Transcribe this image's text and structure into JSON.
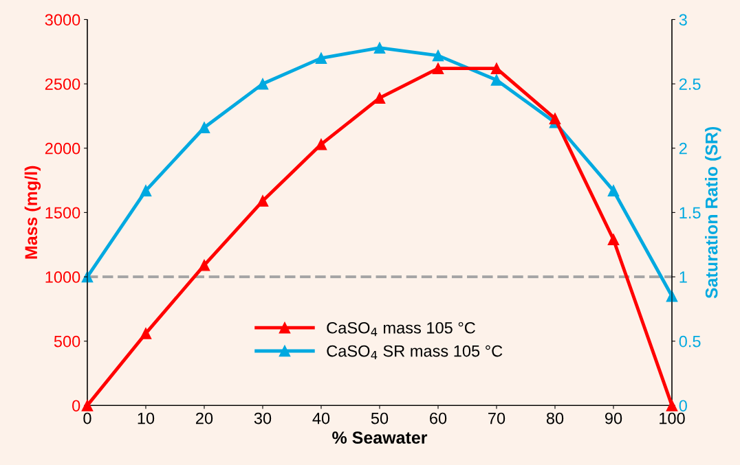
{
  "chart_data": {
    "type": "line",
    "xlabel": "% Seawater",
    "ylabel": "Mass (mg/l)",
    "y2label": "Saturation Ratio (SR)",
    "x": [
      0,
      10,
      20,
      30,
      40,
      50,
      60,
      70,
      80,
      90,
      100
    ],
    "series": [
      {
        "name": "CaSO$_{4}$ mass 105 °C",
        "color": "#ff0000",
        "values": [
          0,
          560,
          1090,
          1590,
          2030,
          2390,
          2620,
          2620,
          2230,
          1290,
          0
        ]
      },
      {
        "name": "CaSO$_{4}$ SR mass 105 °C",
        "color": "#00a9e0",
        "axis": "y2",
        "values": [
          1.0,
          1.67,
          2.16,
          2.5,
          2.7,
          2.78,
          2.72,
          2.53,
          2.2,
          1.67,
          0.85
        ]
      }
    ],
    "xlim": [
      0,
      100
    ],
    "xticks": [
      0,
      10,
      20,
      30,
      40,
      50,
      60,
      70,
      80,
      90,
      100
    ],
    "ylim": [
      0,
      3000
    ],
    "yticks": [
      0,
      500,
      1000,
      1500,
      2000,
      2500,
      3000
    ],
    "y2lim": [
      0,
      3
    ],
    "y2ticks": [
      0,
      0.5,
      1,
      1.5,
      2,
      2.5,
      3
    ],
    "ref_lines": [
      {
        "axis": "y2",
        "value": 1,
        "color": "#a6a6a6",
        "line_style": "dashed"
      }
    ],
    "marker": "triangle",
    "line_style": "solid",
    "grid": false,
    "legend": "bottom"
  }
}
